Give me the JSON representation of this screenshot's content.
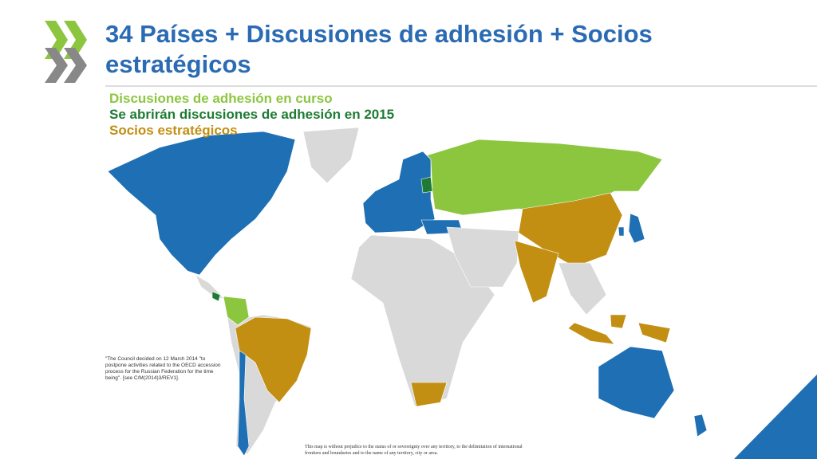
{
  "header": {
    "title": "34 Países + Discusiones de adhesión + Socios estratégicos"
  },
  "legend": [
    {
      "label": "Discusiones de adhesión en curso",
      "color": "#8cc63f"
    },
    {
      "label": "Se abrirán discusiones de adhesión en 2015",
      "color": "#1e7b34"
    },
    {
      "label": "Socios estratégicos",
      "color": "#c28f13"
    }
  ],
  "note": "\"The Council decided on 12 March 2014 \"to postpone activities related to the OECD accession process for the Russian Federation for the time being\". [see C/M(2014)3/REV1].",
  "disclaimer": "This map is without prejudice to the status of or sovereignty over any territory, to the delimitation of international frontiers and boundaries and to the name of any territory, city or area."
}
